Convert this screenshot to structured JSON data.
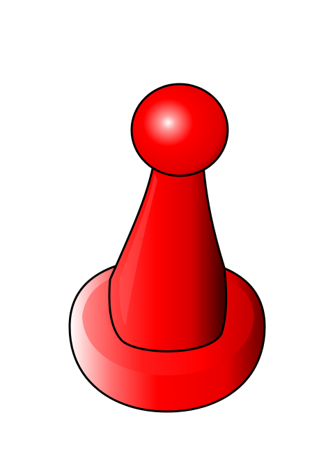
{
  "illustration": {
    "subject": "game-pawn",
    "colors": {
      "primary": "#ff0000",
      "highlight": "#ffffff",
      "shade": "#7a0000",
      "outline": "#000000",
      "background": "#ffffff"
    }
  }
}
